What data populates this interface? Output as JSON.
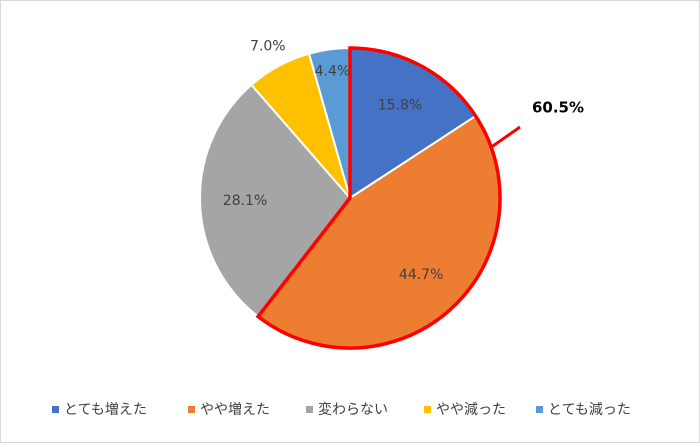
{
  "chart_data": {
    "type": "pie",
    "categories": [
      "とても増えた",
      "やや増えた",
      "変わらない",
      "やや減った",
      "とても減った"
    ],
    "values": [
      15.8,
      44.7,
      28.1,
      7.0,
      4.4
    ],
    "value_labels": [
      "15.8%",
      "44.7%",
      "28.1%",
      "7.0%",
      "4.4%"
    ],
    "colors": [
      "#4472c4",
      "#ed7d31",
      "#a5a5a5",
      "#ffc000",
      "#5b9bd5"
    ],
    "annotation": "60.5%",
    "legend": "bottom"
  }
}
